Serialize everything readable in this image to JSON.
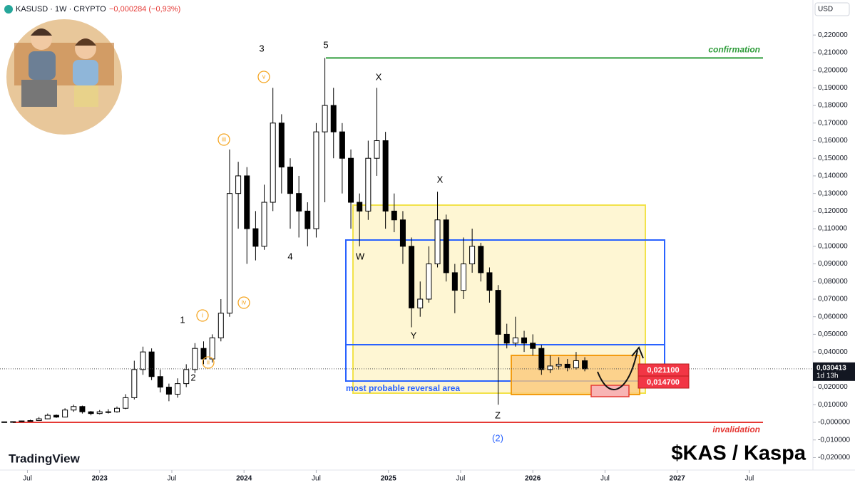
{
  "chart_data": {
    "type": "candlestick",
    "title": "KASUSD · 1W · CRYPTO",
    "change_label": "−0,000284 (−0,93%)",
    "currency": "USD",
    "last_price": {
      "value": 0.030413,
      "label": "0,030413"
    },
    "countdown": "1d 13h",
    "brand": "TradingView",
    "watermark": "$KAS / Kaspa",
    "x": [
      2022.34,
      2022.4,
      2022.46,
      2022.52,
      2022.58,
      2022.64,
      2022.7,
      2022.76,
      2022.82,
      2022.88,
      2022.94,
      2023.0,
      2023.06,
      2023.12,
      2023.18,
      2023.24,
      2023.3,
      2023.36,
      2023.42,
      2023.48,
      2023.54,
      2023.6,
      2023.66,
      2023.72,
      2023.78,
      2023.84,
      2023.9,
      2023.96,
      2024.02,
      2024.08,
      2024.14,
      2024.2,
      2024.26,
      2024.32,
      2024.38,
      2024.44,
      2024.5,
      2024.56,
      2024.62,
      2024.68,
      2024.74,
      2024.8,
      2024.86,
      2024.92,
      2024.98,
      2025.04,
      2025.1,
      2025.16,
      2025.22,
      2025.28,
      2025.34,
      2025.4,
      2025.46,
      2025.52,
      2025.58,
      2025.64,
      2025.7,
      2025.76,
      2025.82,
      2025.88,
      2025.94,
      2026.0,
      2026.06,
      2026.12,
      2026.18,
      2026.24,
      2026.3,
      2026.36
    ],
    "candles": [
      [
        0.0002,
        0.0004,
        0.0001,
        0.0003
      ],
      [
        0.0003,
        0.0006,
        0.0002,
        0.0004
      ],
      [
        0.0004,
        0.001,
        0.0003,
        0.0008
      ],
      [
        0.0008,
        0.0015,
        0.0006,
        0.001
      ],
      [
        0.001,
        0.003,
        0.0008,
        0.002
      ],
      [
        0.002,
        0.005,
        0.0018,
        0.004
      ],
      [
        0.004,
        0.0045,
        0.0025,
        0.003
      ],
      [
        0.003,
        0.008,
        0.0028,
        0.007
      ],
      [
        0.007,
        0.01,
        0.006,
        0.009
      ],
      [
        0.009,
        0.0095,
        0.005,
        0.006
      ],
      [
        0.006,
        0.0065,
        0.004,
        0.005
      ],
      [
        0.005,
        0.007,
        0.0045,
        0.006
      ],
      [
        0.006,
        0.0075,
        0.005,
        0.006
      ],
      [
        0.006,
        0.009,
        0.0055,
        0.008
      ],
      [
        0.008,
        0.016,
        0.0075,
        0.014
      ],
      [
        0.014,
        0.035,
        0.013,
        0.03
      ],
      [
        0.03,
        0.043,
        0.027,
        0.04
      ],
      [
        0.04,
        0.042,
        0.024,
        0.026
      ],
      [
        0.026,
        0.03,
        0.017,
        0.02
      ],
      [
        0.02,
        0.022,
        0.012,
        0.016
      ],
      [
        0.016,
        0.025,
        0.014,
        0.022
      ],
      [
        0.022,
        0.033,
        0.02,
        0.03
      ],
      [
        0.03,
        0.045,
        0.028,
        0.042
      ],
      [
        0.042,
        0.046,
        0.033,
        0.036
      ],
      [
        0.036,
        0.05,
        0.034,
        0.048
      ],
      [
        0.048,
        0.07,
        0.046,
        0.062
      ],
      [
        0.062,
        0.155,
        0.06,
        0.13
      ],
      [
        0.13,
        0.148,
        0.11,
        0.14
      ],
      [
        0.14,
        0.145,
        0.09,
        0.11
      ],
      [
        0.11,
        0.12,
        0.092,
        0.1
      ],
      [
        0.1,
        0.135,
        0.098,
        0.125
      ],
      [
        0.125,
        0.19,
        0.12,
        0.17
      ],
      [
        0.17,
        0.175,
        0.13,
        0.145
      ],
      [
        0.145,
        0.15,
        0.11,
        0.13
      ],
      [
        0.13,
        0.14,
        0.105,
        0.12
      ],
      [
        0.12,
        0.125,
        0.1,
        0.11
      ],
      [
        0.11,
        0.17,
        0.105,
        0.165
      ],
      [
        0.165,
        0.207,
        0.125,
        0.18
      ],
      [
        0.18,
        0.19,
        0.15,
        0.165
      ],
      [
        0.165,
        0.17,
        0.13,
        0.15
      ],
      [
        0.15,
        0.155,
        0.11,
        0.125
      ],
      [
        0.125,
        0.13,
        0.1,
        0.12
      ],
      [
        0.12,
        0.16,
        0.115,
        0.15
      ],
      [
        0.15,
        0.19,
        0.14,
        0.16
      ],
      [
        0.16,
        0.165,
        0.11,
        0.12
      ],
      [
        0.12,
        0.13,
        0.108,
        0.115
      ],
      [
        0.115,
        0.12,
        0.09,
        0.1
      ],
      [
        0.1,
        0.105,
        0.054,
        0.065
      ],
      [
        0.065,
        0.08,
        0.06,
        0.07
      ],
      [
        0.07,
        0.1,
        0.068,
        0.09
      ],
      [
        0.09,
        0.131,
        0.088,
        0.115
      ],
      [
        0.115,
        0.118,
        0.08,
        0.085
      ],
      [
        0.085,
        0.09,
        0.062,
        0.075
      ],
      [
        0.075,
        0.105,
        0.07,
        0.09
      ],
      [
        0.09,
        0.11,
        0.085,
        0.1
      ],
      [
        0.1,
        0.102,
        0.08,
        0.085
      ],
      [
        0.085,
        0.088,
        0.068,
        0.075
      ],
      [
        0.075,
        0.078,
        0.01,
        0.05
      ],
      [
        0.05,
        0.056,
        0.042,
        0.045
      ],
      [
        0.045,
        0.06,
        0.043,
        0.048
      ],
      [
        0.048,
        0.052,
        0.04,
        0.045
      ],
      [
        0.045,
        0.05,
        0.038,
        0.042
      ],
      [
        0.042,
        0.044,
        0.027,
        0.03
      ],
      [
        0.03,
        0.038,
        0.028,
        0.032
      ],
      [
        0.032,
        0.037,
        0.03,
        0.033
      ],
      [
        0.033,
        0.036,
        0.029,
        0.031
      ],
      [
        0.031,
        0.04,
        0.03,
        0.035
      ],
      [
        0.035,
        0.037,
        0.029,
        0.0304
      ]
    ],
    "xlim": [
      2022.31,
      2027.94
    ],
    "xticks": [
      {
        "value": 2022.5,
        "label": "Jul"
      },
      2023,
      {
        "value": 2023.5,
        "label": "Jul"
      },
      2024,
      {
        "value": 2024.5,
        "label": "Jul"
      },
      2025,
      {
        "value": 2025.5,
        "label": "Jul"
      },
      2026,
      {
        "value": 2026.5,
        "label": "Jul"
      },
      2027,
      {
        "value": 2027.5,
        "label": "Jul"
      }
    ],
    "ylim": [
      -0.0271,
      0.2399
    ],
    "yticks": [
      {
        "value": 0.22,
        "label": "0,220000"
      },
      {
        "value": 0.21,
        "label": "0,210000"
      },
      {
        "value": 0.2,
        "label": "0,200000"
      },
      {
        "value": 0.19,
        "label": "0,190000"
      },
      {
        "value": 0.18,
        "label": "0,180000"
      },
      {
        "value": 0.17,
        "label": "0,170000"
      },
      {
        "value": 0.16,
        "label": "0,160000"
      },
      {
        "value": 0.15,
        "label": "0,150000"
      },
      {
        "value": 0.14,
        "label": "0,140000"
      },
      {
        "value": 0.13,
        "label": "0,130000"
      },
      {
        "value": 0.12,
        "label": "0,120000"
      },
      {
        "value": 0.11,
        "label": "0,110000"
      },
      {
        "value": 0.1,
        "label": "0,100000"
      },
      {
        "value": 0.09,
        "label": "0,090000"
      },
      {
        "value": 0.08,
        "label": "0,080000"
      },
      {
        "value": 0.07,
        "label": "0,070000"
      },
      {
        "value": 0.06,
        "label": "0,060000"
      },
      {
        "value": 0.05,
        "label": "0,050000"
      },
      {
        "value": 0.04,
        "label": "0,040000"
      },
      {
        "value": 0.03,
        "label": "0,030000"
      },
      {
        "value": 0.02,
        "label": "0,020000"
      },
      {
        "value": 0.01,
        "label": "0,010000"
      },
      {
        "value": 0,
        "label": "-0,000000"
      },
      {
        "value": -0.01,
        "label": "-0,010000"
      },
      {
        "value": -0.02,
        "label": "-0,020000"
      }
    ],
    "levels": [
      {
        "name": "confirmation",
        "value": 0.207,
        "color": "#2e9c3a"
      },
      {
        "name": "invalidation",
        "value": 0,
        "color": "#e53935"
      }
    ],
    "box_tags": [
      {
        "value": 0.0211,
        "label": "0,021100"
      },
      {
        "value": 0.0147,
        "label": "0,014700"
      }
    ],
    "annotations": [
      "3",
      "5",
      "X",
      "X",
      "W",
      "4",
      "Y",
      "Z",
      "1",
      "2",
      "(2)",
      "v",
      "iii",
      "iv",
      "i",
      "ii",
      "most probable reversal area"
    ]
  }
}
